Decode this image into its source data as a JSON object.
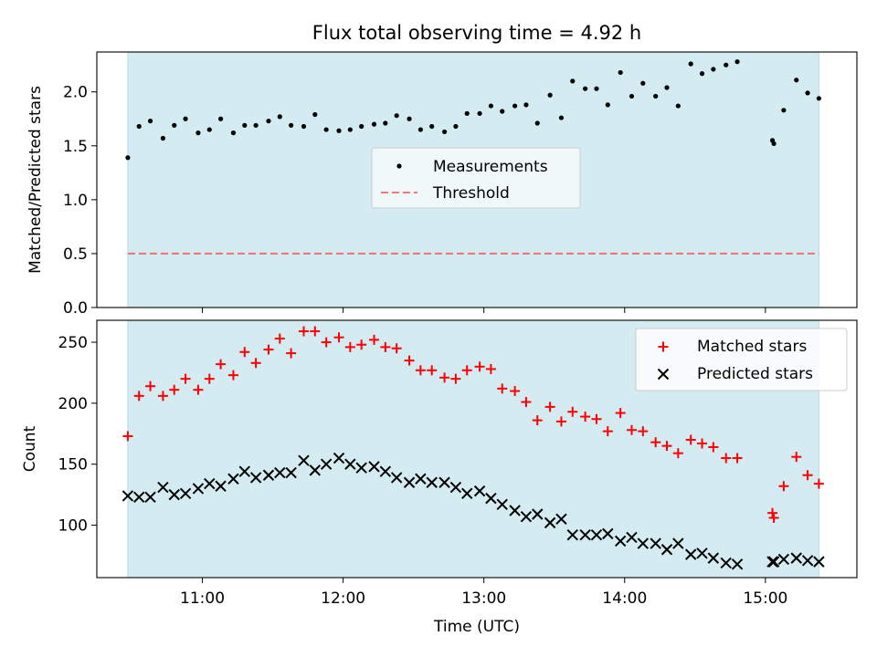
{
  "title": "Flux total observing time = 4.92 h",
  "colors": {
    "shade": "#d3ebf1",
    "threshold": "#f07878",
    "measurements": "#000000",
    "matched": "#ff0000",
    "predicted": "#000000"
  },
  "chart_data": [
    {
      "type": "scatter",
      "ylabel": "Matched/Predicted stars",
      "ylim": [
        0,
        2.37
      ],
      "yticks": [
        0.0,
        0.5,
        1.0,
        1.5,
        2.0
      ],
      "ytick_labels": [
        "0.0",
        "0.5",
        "1.0",
        "1.5",
        "2.0"
      ],
      "xlim_hours": [
        10.25,
        15.65
      ],
      "observing_window_hours": [
        10.47,
        15.38
      ],
      "grid": false,
      "legend_placement": "center",
      "threshold": 0.5,
      "series": [
        {
          "name": "Measurements",
          "x_hours": [
            10.47,
            10.55,
            10.63,
            10.72,
            10.8,
            10.88,
            10.97,
            11.05,
            11.13,
            11.22,
            11.3,
            11.38,
            11.47,
            11.55,
            11.63,
            11.72,
            11.8,
            11.88,
            11.97,
            12.05,
            12.13,
            12.22,
            12.3,
            12.38,
            12.47,
            12.55,
            12.63,
            12.72,
            12.8,
            12.88,
            12.97,
            13.05,
            13.13,
            13.22,
            13.3,
            13.38,
            13.47,
            13.55,
            13.63,
            13.72,
            13.8,
            13.88,
            13.97,
            14.05,
            14.13,
            14.22,
            14.3,
            14.38,
            14.47,
            14.55,
            14.63,
            14.72,
            14.8,
            15.05,
            15.06,
            15.13,
            15.22,
            15.3,
            15.38
          ],
          "y": [
            1.39,
            1.68,
            1.73,
            1.57,
            1.69,
            1.75,
            1.62,
            1.65,
            1.75,
            1.62,
            1.69,
            1.69,
            1.73,
            1.77,
            1.69,
            1.68,
            1.79,
            1.65,
            1.64,
            1.65,
            1.68,
            1.7,
            1.71,
            1.78,
            1.75,
            1.65,
            1.68,
            1.63,
            1.68,
            1.8,
            1.8,
            1.87,
            1.82,
            1.87,
            1.88,
            1.71,
            1.97,
            1.76,
            2.1,
            2.03,
            2.03,
            1.88,
            2.18,
            1.96,
            2.08,
            1.96,
            2.04,
            1.87,
            2.26,
            2.17,
            2.21,
            2.25,
            2.28,
            1.55,
            1.52,
            1.83,
            2.11,
            1.99,
            1.94
          ]
        },
        {
          "name": "Threshold",
          "y": [
            0.5,
            0.5
          ],
          "x_hours": [
            10.47,
            15.38
          ]
        }
      ]
    },
    {
      "type": "scatter",
      "ylabel": "Count",
      "xlabel": "Time (UTC)",
      "ylim": [
        57,
        268
      ],
      "yticks": [
        100,
        150,
        200,
        250
      ],
      "ytick_labels": [
        "100",
        "150",
        "200",
        "250"
      ],
      "xlim_hours": [
        10.25,
        15.65
      ],
      "xticks_hours": [
        11,
        12,
        13,
        14,
        15
      ],
      "xtick_labels": [
        "11:00",
        "12:00",
        "13:00",
        "14:00",
        "15:00"
      ],
      "observing_window_hours": [
        10.47,
        15.38
      ],
      "grid": false,
      "legend_placement": "upper right",
      "series": [
        {
          "name": "Matched stars",
          "x_hours": [
            10.47,
            10.55,
            10.63,
            10.72,
            10.8,
            10.88,
            10.97,
            11.05,
            11.13,
            11.22,
            11.3,
            11.38,
            11.47,
            11.55,
            11.63,
            11.72,
            11.8,
            11.88,
            11.97,
            12.05,
            12.13,
            12.22,
            12.3,
            12.38,
            12.47,
            12.55,
            12.63,
            12.72,
            12.8,
            12.88,
            12.97,
            13.05,
            13.13,
            13.22,
            13.3,
            13.38,
            13.47,
            13.55,
            13.63,
            13.72,
            13.8,
            13.88,
            13.97,
            14.05,
            14.13,
            14.22,
            14.3,
            14.38,
            14.47,
            14.55,
            14.63,
            14.72,
            14.8,
            15.05,
            15.06,
            15.13,
            15.22,
            15.3,
            15.38
          ],
          "y": [
            173,
            206,
            214,
            206,
            211,
            220,
            211,
            220,
            232,
            223,
            242,
            233,
            244,
            253,
            241,
            259,
            259,
            250,
            254,
            246,
            248,
            252,
            246,
            245,
            235,
            227,
            227,
            221,
            220,
            227,
            230,
            228,
            212,
            210,
            201,
            186,
            197,
            185,
            193,
            189,
            187,
            177,
            192,
            178,
            177,
            168,
            165,
            159,
            170,
            167,
            164,
            155,
            155,
            110,
            106,
            132,
            156,
            141,
            134
          ]
        },
        {
          "name": "Predicted stars",
          "x_hours": [
            10.47,
            10.55,
            10.63,
            10.72,
            10.8,
            10.88,
            10.97,
            11.05,
            11.13,
            11.22,
            11.3,
            11.38,
            11.47,
            11.55,
            11.63,
            11.72,
            11.8,
            11.88,
            11.97,
            12.05,
            12.13,
            12.22,
            12.3,
            12.38,
            12.47,
            12.55,
            12.63,
            12.72,
            12.8,
            12.88,
            12.97,
            13.05,
            13.13,
            13.22,
            13.3,
            13.38,
            13.47,
            13.55,
            13.63,
            13.72,
            13.8,
            13.88,
            13.97,
            14.05,
            14.13,
            14.22,
            14.3,
            14.38,
            14.47,
            14.55,
            14.63,
            14.72,
            14.8,
            15.05,
            15.06,
            15.13,
            15.22,
            15.3,
            15.38
          ],
          "y": [
            124,
            123,
            123,
            131,
            125,
            126,
            130,
            134,
            132,
            138,
            144,
            139,
            141,
            143,
            143,
            153,
            145,
            150,
            155,
            150,
            147,
            148,
            144,
            139,
            135,
            138,
            135,
            135,
            131,
            126,
            128,
            122,
            117,
            112,
            107,
            109,
            102,
            105,
            92,
            92,
            92,
            93,
            87,
            90,
            85,
            85,
            80,
            85,
            76,
            77,
            73,
            69,
            68,
            70,
            70,
            72,
            73,
            71,
            70
          ]
        }
      ]
    }
  ]
}
